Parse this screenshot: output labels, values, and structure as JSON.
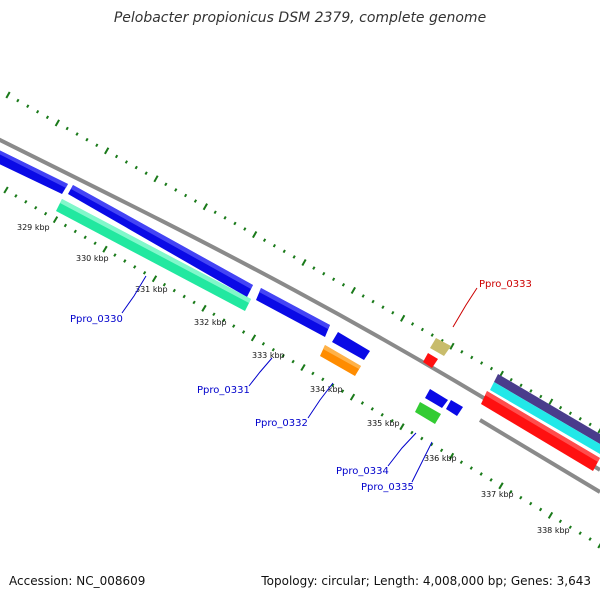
{
  "title": "Pelobacter propionicus DSM 2379, complete genome",
  "footer": {
    "accession": "Accession: NC_008609",
    "summary": "Topology: circular; Length: 4,008,000 bp; Genes: 3,643"
  },
  "kbp_ticks": [
    "329 kbp",
    "330 kbp",
    "331 kbp",
    "332 kbp",
    "333 kbp",
    "334 kbp",
    "335 kbp",
    "336 kbp",
    "337 kbp",
    "338 kbp"
  ],
  "gene_labels": {
    "ppro_0330": "Ppro_0330",
    "ppro_0331": "Ppro_0331",
    "ppro_0332": "Ppro_0332",
    "ppro_0333": "Ppro_0333",
    "ppro_0334": "Ppro_0334",
    "ppro_0335": "Ppro_0335"
  },
  "colors": {
    "backbone": "#888888",
    "tick": "#1a7a1a",
    "cds_forward": "#0a0ae6",
    "cds_reverse_teal": "#22e8a0",
    "orange": "#ff8c00",
    "khaki": "#c8bc6c",
    "red": "#ff1010",
    "green": "#33cc33",
    "cyan": "#22e8e8",
    "navy": "#4a3c8c",
    "label_blue": "#0000cc",
    "label_red": "#cc0000"
  }
}
